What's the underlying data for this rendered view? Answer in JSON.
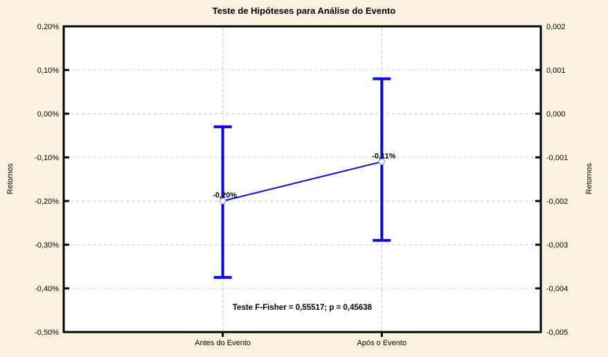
{
  "chart_data": {
    "type": "line",
    "subtype": "means-with-error-bars",
    "title": "Teste de Hipóteses para Análise do Evento",
    "categories": [
      "Antes do Evento",
      "Após o Evento"
    ],
    "series": [
      {
        "name": "Retornos",
        "values_pct": [
          -0.2,
          -0.11
        ],
        "point_labels": [
          "-0,20%",
          "-0,11%"
        ],
        "error_low_pct": [
          -0.375,
          -0.29
        ],
        "error_high_pct": [
          -0.03,
          0.08
        ]
      }
    ],
    "ylabel_left": "Retornos",
    "ylabel_right": "Retornos",
    "ylim_left_pct": [
      -0.5,
      0.2
    ],
    "ylim_right": [
      -0.005,
      0.002
    ],
    "left_tick_labels": [
      "0,20%",
      "0,10%",
      "0,00%",
      "-0,10%",
      "-0,20%",
      "-0,30%",
      "-0,40%",
      "-0,50%"
    ],
    "right_tick_labels": [
      "0,002",
      "0,001",
      "0,000",
      "-0,001",
      "-0,002",
      "-0,003",
      "-0,004",
      "-0,005"
    ],
    "grid": "dashed horizontal at each y tick, dashed vertical at each category",
    "legend": "none",
    "annotation": "Teste F-Fisher = 0,55517; p = 0,45638",
    "colors": {
      "line": "#0404FA",
      "error_bar": "#0404FA",
      "marker_fill": "#FFFFFF",
      "marker_stroke": "#9AA7D9",
      "grid": "#C8C8C8",
      "plot_background": "#FFFFFF",
      "page_background": "#FBF3DF",
      "text": "#000000",
      "border": "#000000"
    }
  }
}
